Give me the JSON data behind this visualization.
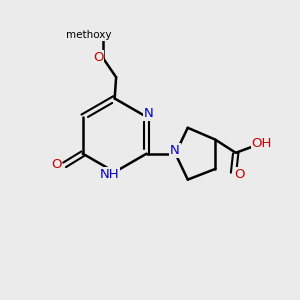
{
  "background_color": "#ebebeb",
  "bond_color": "#000000",
  "N_color": "#0000cc",
  "O_color": "#cc0000",
  "figsize": [
    3.0,
    3.0
  ],
  "dpi": 100,
  "xlim": [
    0,
    10
  ],
  "ylim": [
    0,
    10
  ]
}
